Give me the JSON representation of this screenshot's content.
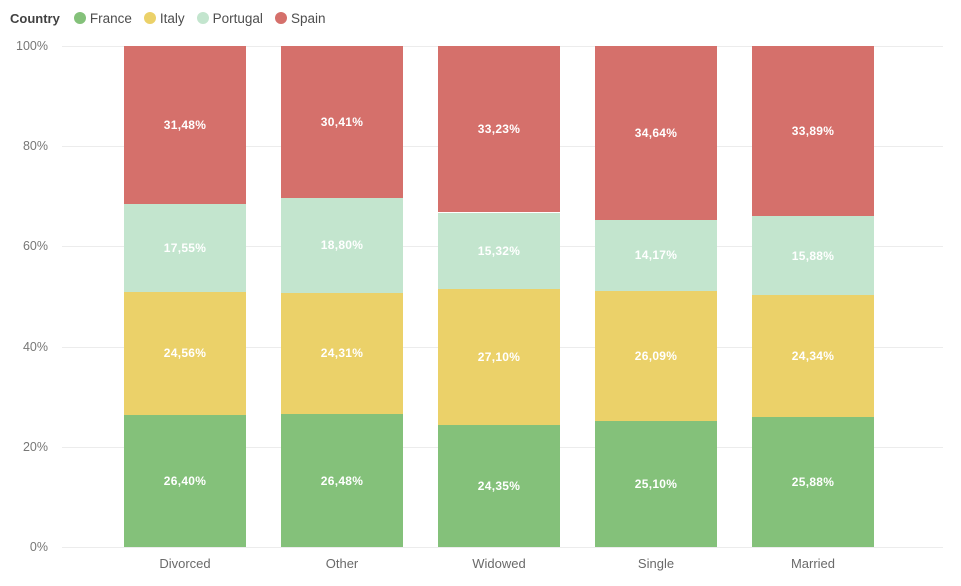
{
  "legend": {
    "title": "Country",
    "items": [
      {
        "label": "France",
        "color": "#84C17A"
      },
      {
        "label": "Italy",
        "color": "#EBD169"
      },
      {
        "label": "Portugal",
        "color": "#C3E5CE"
      },
      {
        "label": "Spain",
        "color": "#D5706B"
      }
    ]
  },
  "chart_data": {
    "type": "bar",
    "variant": "100%-stacked-column",
    "title": "",
    "xlabel": "",
    "ylabel": "",
    "categories": [
      "Divorced",
      "Other",
      "Widowed",
      "Single",
      "Married"
    ],
    "series": [
      {
        "name": "France",
        "color": "#84C17A",
        "values": [
          26.4,
          26.48,
          24.35,
          25.1,
          25.88
        ],
        "labels": [
          "26,40%",
          "26,48%",
          "24,35%",
          "25,10%",
          "25,88%"
        ]
      },
      {
        "name": "Italy",
        "color": "#EBD169",
        "values": [
          24.56,
          24.31,
          27.1,
          26.09,
          24.34
        ],
        "labels": [
          "24,56%",
          "24,31%",
          "27,10%",
          "26,09%",
          "24,34%"
        ]
      },
      {
        "name": "Portugal",
        "color": "#C3E5CE",
        "values": [
          17.55,
          18.8,
          15.32,
          14.17,
          15.88
        ],
        "labels": [
          "17,55%",
          "18,80%",
          "15,32%",
          "14,17%",
          "15,88%"
        ]
      },
      {
        "name": "Spain",
        "color": "#D5706B",
        "values": [
          31.48,
          30.41,
          33.23,
          34.64,
          33.89
        ],
        "labels": [
          "31,48%",
          "30,41%",
          "33,23%",
          "34,64%",
          "33,89%"
        ]
      }
    ],
    "ylim": [
      0,
      100
    ],
    "yticks": [
      {
        "value": 0,
        "label": "0%"
      },
      {
        "value": 20,
        "label": "20%"
      },
      {
        "value": 40,
        "label": "40%"
      },
      {
        "value": 60,
        "label": "60%"
      },
      {
        "value": 80,
        "label": "80%"
      },
      {
        "value": 100,
        "label": "100%"
      }
    ],
    "grid": "horizontal",
    "legend_position": "top-left",
    "label_color": "#ffffff",
    "gridline_color": "#ececec",
    "axis_text_color": "#777776"
  }
}
